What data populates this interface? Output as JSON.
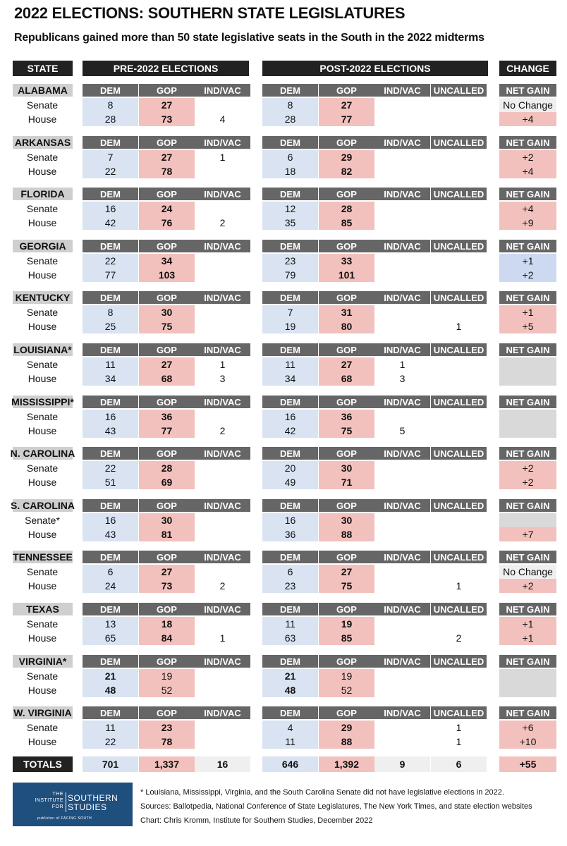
{
  "header": {
    "title": "2022 ELECTIONS: SOUTHERN STATE LEGISLATURES",
    "subtitle": "Republicans gained more than 50 state legislative seats in the South in the 2022 midterms"
  },
  "chart_data": {
    "type": "table",
    "column_groups": [
      "STATE",
      "PRE-2022 ELECTIONS",
      "POST-2022 ELECTIONS",
      "CHANGE"
    ],
    "pre_columns": [
      "DEM",
      "GOP",
      "IND/VAC"
    ],
    "post_columns": [
      "DEM",
      "GOP",
      "IND/VAC",
      "UNCALLED"
    ],
    "change_column": "NET GAIN",
    "states": [
      {
        "name": "ALABAMA",
        "pre_ind_header": true,
        "rows": [
          {
            "chamber": "Senate",
            "pre": [
              "8",
              "27",
              ""
            ],
            "pre_win": "gop",
            "post": [
              "8",
              "27",
              "",
              ""
            ],
            "post_win": "gop",
            "change": "No Change",
            "change_party": "none"
          },
          {
            "chamber": "House",
            "pre": [
              "28",
              "73",
              "4"
            ],
            "pre_win": "gop",
            "post": [
              "28",
              "77",
              "",
              ""
            ],
            "post_win": "gop",
            "change": "+4",
            "change_party": "gop"
          }
        ]
      },
      {
        "name": "ARKANSAS",
        "rows": [
          {
            "chamber": "Senate",
            "pre": [
              "7",
              "27",
              "1"
            ],
            "pre_win": "gop",
            "post": [
              "6",
              "29",
              "",
              ""
            ],
            "post_win": "gop",
            "change": "+2",
            "change_party": "gop"
          },
          {
            "chamber": "House",
            "pre": [
              "22",
              "78",
              ""
            ],
            "pre_win": "gop",
            "post": [
              "18",
              "82",
              "",
              ""
            ],
            "post_win": "gop",
            "change": "+4",
            "change_party": "gop"
          }
        ]
      },
      {
        "name": "FLORIDA",
        "rows": [
          {
            "chamber": "Senate",
            "pre": [
              "16",
              "24",
              ""
            ],
            "pre_win": "gop",
            "post": [
              "12",
              "28",
              "",
              ""
            ],
            "post_win": "gop",
            "change": "+4",
            "change_party": "gop"
          },
          {
            "chamber": "House",
            "pre": [
              "42",
              "76",
              "2"
            ],
            "pre_win": "gop",
            "post": [
              "35",
              "85",
              "",
              ""
            ],
            "post_win": "gop",
            "change": "+9",
            "change_party": "gop"
          }
        ]
      },
      {
        "name": "GEORGIA",
        "rows": [
          {
            "chamber": "Senate",
            "pre": [
              "22",
              "34",
              ""
            ],
            "pre_win": "gop",
            "post": [
              "23",
              "33",
              "",
              ""
            ],
            "post_win": "gop",
            "change": "+1",
            "change_party": "dem"
          },
          {
            "chamber": "House",
            "pre": [
              "77",
              "103",
              ""
            ],
            "pre_win": "gop",
            "post": [
              "79",
              "101",
              "",
              ""
            ],
            "post_win": "gop",
            "change": "+2",
            "change_party": "dem"
          }
        ]
      },
      {
        "name": "KENTUCKY",
        "rows": [
          {
            "chamber": "Senate",
            "pre": [
              "8",
              "30",
              ""
            ],
            "pre_win": "gop",
            "post": [
              "7",
              "31",
              "",
              ""
            ],
            "post_win": "gop",
            "change": "+1",
            "change_party": "gop"
          },
          {
            "chamber": "House",
            "pre": [
              "25",
              "75",
              ""
            ],
            "pre_win": "gop",
            "post": [
              "19",
              "80",
              "",
              "1"
            ],
            "post_win": "gop",
            "change": "+5",
            "change_party": "gop"
          }
        ]
      },
      {
        "name": "LOUISIANA*",
        "rows": [
          {
            "chamber": "Senate",
            "pre": [
              "11",
              "27",
              "1"
            ],
            "pre_win": "gop",
            "post": [
              "11",
              "27",
              "1",
              ""
            ],
            "post_win": "gop",
            "change": "",
            "change_party": "na"
          },
          {
            "chamber": "House",
            "pre": [
              "34",
              "68",
              "3"
            ],
            "pre_win": "gop",
            "post": [
              "34",
              "68",
              "3",
              ""
            ],
            "post_win": "gop",
            "change": "",
            "change_party": "na"
          }
        ]
      },
      {
        "name": "MISSISSIPPI*",
        "rows": [
          {
            "chamber": "Senate",
            "pre": [
              "16",
              "36",
              ""
            ],
            "pre_win": "gop",
            "post": [
              "16",
              "36",
              "",
              ""
            ],
            "post_win": "gop",
            "change": "",
            "change_party": "na"
          },
          {
            "chamber": "House",
            "pre": [
              "43",
              "77",
              "2"
            ],
            "pre_win": "gop",
            "post": [
              "42",
              "75",
              "5",
              ""
            ],
            "post_win": "gop",
            "change": "",
            "change_party": "na"
          }
        ]
      },
      {
        "name": "N. CAROLINA",
        "rows": [
          {
            "chamber": "Senate",
            "pre": [
              "22",
              "28",
              ""
            ],
            "pre_win": "gop",
            "post": [
              "20",
              "30",
              "",
              ""
            ],
            "post_win": "gop",
            "change": "+2",
            "change_party": "gop"
          },
          {
            "chamber": "House",
            "pre": [
              "51",
              "69",
              ""
            ],
            "pre_win": "gop",
            "post": [
              "49",
              "71",
              "",
              ""
            ],
            "post_win": "gop",
            "change": "+2",
            "change_party": "gop"
          }
        ]
      },
      {
        "name": "S. CAROLINA",
        "rows": [
          {
            "chamber": "Senate*",
            "pre": [
              "16",
              "30",
              ""
            ],
            "pre_win": "gop",
            "post": [
              "16",
              "30",
              "",
              ""
            ],
            "post_win": "gop",
            "change": "",
            "change_party": "na"
          },
          {
            "chamber": "House",
            "pre": [
              "43",
              "81",
              ""
            ],
            "pre_win": "gop",
            "post": [
              "36",
              "88",
              "",
              ""
            ],
            "post_win": "gop",
            "change": "+7",
            "change_party": "gop"
          }
        ]
      },
      {
        "name": "TENNESSEE",
        "rows": [
          {
            "chamber": "Senate",
            "pre": [
              "6",
              "27",
              ""
            ],
            "pre_win": "gop",
            "post": [
              "6",
              "27",
              "",
              ""
            ],
            "post_win": "gop",
            "change": "No Change",
            "change_party": "none"
          },
          {
            "chamber": "House",
            "pre": [
              "24",
              "73",
              "2"
            ],
            "pre_win": "gop",
            "post": [
              "23",
              "75",
              "",
              "1"
            ],
            "post_win": "gop",
            "change": "+2",
            "change_party": "gop"
          }
        ]
      },
      {
        "name": "TEXAS",
        "rows": [
          {
            "chamber": "Senate",
            "pre": [
              "13",
              "18",
              ""
            ],
            "pre_win": "gop",
            "post": [
              "11",
              "19",
              "",
              ""
            ],
            "post_win": "gop",
            "change": "+1",
            "change_party": "gop"
          },
          {
            "chamber": "House",
            "pre": [
              "65",
              "84",
              "1"
            ],
            "pre_win": "gop",
            "post": [
              "63",
              "85",
              "",
              "2"
            ],
            "post_win": "gop",
            "change": "+1",
            "change_party": "gop"
          }
        ]
      },
      {
        "name": "VIRGINIA*",
        "rows": [
          {
            "chamber": "Senate",
            "pre": [
              "21",
              "19",
              ""
            ],
            "pre_win": "dem",
            "post": [
              "21",
              "19",
              "",
              ""
            ],
            "post_win": "dem",
            "change": "",
            "change_party": "na"
          },
          {
            "chamber": "House",
            "pre": [
              "48",
              "52",
              ""
            ],
            "pre_win": "dem",
            "post": [
              "48",
              "52",
              "",
              ""
            ],
            "post_win": "dem",
            "change": "",
            "change_party": "na"
          }
        ]
      },
      {
        "name": "W. VIRGINIA",
        "rows": [
          {
            "chamber": "Senate",
            "pre": [
              "11",
              "23",
              ""
            ],
            "pre_win": "gop",
            "post": [
              "4",
              "29",
              "",
              "1"
            ],
            "post_win": "gop",
            "change": "+6",
            "change_party": "gop"
          },
          {
            "chamber": "House",
            "pre": [
              "22",
              "78",
              ""
            ],
            "pre_win": "gop",
            "post": [
              "11",
              "88",
              "",
              "1"
            ],
            "post_win": "gop",
            "change": "+10",
            "change_party": "gop"
          }
        ]
      }
    ],
    "totals": {
      "label": "TOTALS",
      "pre": [
        "701",
        "1,337",
        "16"
      ],
      "post": [
        "646",
        "1,392",
        "9",
        "6"
      ],
      "change": "+55"
    }
  },
  "logo": {
    "line1a": "THE",
    "line1b": "INSTITUTE",
    "line1c": "FOR",
    "name1": "SOUTHERN",
    "name2": "STUDIES",
    "publisher": "publisher of FACING SOUTH"
  },
  "notes": [
    "* Louisiana, Mississippi, Virginia, and the South Carolina Senate did not have legislative elections in 2022.",
    "Sources: Ballotpedia, National Conference of State Legislatures,  The New York Times, and state election websites",
    "Chart: Chris Kromm, Institute for Southern Studies, December 2022"
  ],
  "colors": {
    "dem": "#d9e3f2",
    "gop": "#f2c1bd",
    "header": "#222222",
    "subheader": "#666666"
  }
}
